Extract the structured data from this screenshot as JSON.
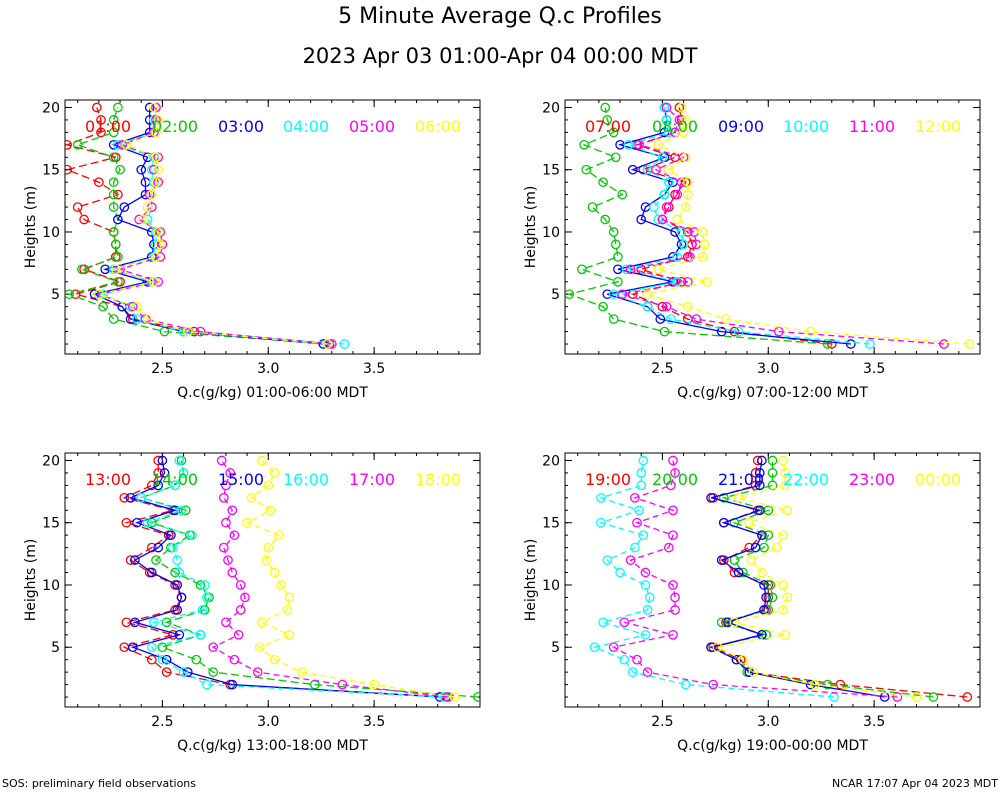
{
  "title": "5 Minute Average Q.c Profiles",
  "subtitle": "2023 Apr 03 01:00-Apr 04 00:00 MDT",
  "footer_left": "SOS: preliminary field observations",
  "footer_right": "NCAR 17:07 Apr 04 2023 MDT",
  "colors": {
    "red": "#ff0000",
    "green": "#00cc00",
    "blue": "#0000ff",
    "cyan": "#00ffff",
    "magenta": "#ff00ff",
    "yellow": "#ffff00"
  },
  "chart_data": [
    {
      "type": "line",
      "xlabel": "Q.c(g/kg) 01:00-06:00 MDT",
      "ylabel": "Heights (m)",
      "xlim": [
        2.04,
        4.0
      ],
      "ylim": [
        0.2,
        20.6
      ],
      "xticks": [
        "2.5",
        "3.0",
        "3.5"
      ],
      "yticks": [
        "5",
        "10",
        "15",
        "20"
      ],
      "heights": [
        1,
        2,
        3,
        4,
        5,
        6,
        7,
        8,
        9,
        10,
        11,
        12,
        13,
        14,
        15,
        16,
        17,
        18,
        19,
        20
      ],
      "series": [
        {
          "name": "01:00",
          "color": "#ff0000",
          "values": [
            3.29,
            2.65,
            2.36,
            2.31,
            2.09,
            2.3,
            2.13,
            2.28,
            2.28,
            2.27,
            2.13,
            2.1,
            2.29,
            2.2,
            2.05,
            2.28,
            2.05,
            2.21,
            2.21,
            2.19
          ]
        },
        {
          "name": "02:00",
          "color": "#00cc00",
          "values": [
            3.28,
            2.51,
            2.27,
            2.22,
            2.06,
            2.29,
            2.12,
            2.29,
            2.28,
            2.27,
            2.29,
            2.27,
            2.27,
            2.27,
            2.3,
            2.27,
            2.1,
            2.27,
            2.27,
            2.29
          ]
        },
        {
          "name": "03:00",
          "color": "#0000ff",
          "values": [
            3.26,
            2.6,
            2.35,
            2.31,
            2.18,
            2.43,
            2.23,
            2.45,
            2.46,
            2.45,
            2.29,
            2.32,
            2.42,
            2.42,
            2.4,
            2.43,
            2.27,
            2.44,
            2.44,
            2.44
          ]
        },
        {
          "name": "04:00",
          "color": "#00ffff",
          "values": [
            3.36,
            2.6,
            2.38,
            2.35,
            2.22,
            2.45,
            2.27,
            2.46,
            2.47,
            2.47,
            2.43,
            2.45,
            2.45,
            2.46,
            2.45,
            2.46,
            2.29,
            2.47,
            2.46,
            2.47
          ]
        },
        {
          "name": "05:00",
          "color": "#ff00ff",
          "values": [
            3.3,
            2.68,
            2.42,
            2.36,
            2.2,
            2.48,
            2.3,
            2.49,
            2.5,
            2.49,
            2.39,
            2.45,
            2.44,
            2.48,
            2.46,
            2.48,
            2.31,
            2.46,
            2.47,
            2.47
          ]
        },
        {
          "name": "06:00",
          "color": "#ffff00",
          "values": [
            3.28,
            2.62,
            2.43,
            2.38,
            2.2,
            2.46,
            2.28,
            2.47,
            2.49,
            2.48,
            2.41,
            2.43,
            2.45,
            2.47,
            2.48,
            2.47,
            2.33,
            2.47,
            2.48,
            2.46
          ]
        }
      ]
    },
    {
      "type": "line",
      "xlabel": "Q.c(g/kg) 07:00-12:00 MDT",
      "ylabel": "Heights (m)",
      "xlim": [
        2.04,
        4.0
      ],
      "ylim": [
        0.2,
        20.6
      ],
      "xticks": [
        "2.5",
        "3.0",
        "3.5"
      ],
      "yticks": [
        "5",
        "10",
        "15",
        "20"
      ],
      "heights": [
        1,
        2,
        3,
        4,
        5,
        6,
        7,
        8,
        9,
        10,
        11,
        12,
        13,
        14,
        15,
        16,
        17,
        18,
        19,
        20
      ],
      "series": [
        {
          "name": "07:00",
          "color": "#ff0000",
          "values": [
            3.3,
            2.84,
            2.62,
            2.5,
            2.36,
            2.59,
            2.4,
            2.62,
            2.64,
            2.62,
            2.5,
            2.53,
            2.56,
            2.61,
            2.41,
            2.56,
            2.38,
            2.56,
            2.59,
            2.58
          ]
        },
        {
          "name": "08:00",
          "color": "#00cc00",
          "values": [
            3.28,
            2.51,
            2.27,
            2.22,
            2.06,
            2.29,
            2.12,
            2.29,
            2.28,
            2.27,
            2.23,
            2.17,
            2.31,
            2.22,
            2.14,
            2.28,
            2.13,
            2.27,
            2.24,
            2.23
          ]
        },
        {
          "name": "09:00",
          "color": "#0000ff",
          "values": [
            3.39,
            2.78,
            2.49,
            2.43,
            2.24,
            2.55,
            2.29,
            2.55,
            2.59,
            2.56,
            2.4,
            2.42,
            2.51,
            2.55,
            2.36,
            2.51,
            2.3,
            2.51,
            2.52,
            2.51
          ]
        },
        {
          "name": "10:00",
          "color": "#00ffff",
          "values": [
            3.48,
            2.86,
            2.54,
            2.43,
            2.27,
            2.57,
            2.33,
            2.57,
            2.6,
            2.59,
            2.48,
            2.46,
            2.51,
            2.53,
            2.43,
            2.5,
            2.34,
            2.53,
            2.52,
            2.51
          ]
        },
        {
          "name": "11:00",
          "color": "#ff00ff",
          "values": [
            3.83,
            3.05,
            2.66,
            2.52,
            2.31,
            2.62,
            2.35,
            2.63,
            2.66,
            2.65,
            2.5,
            2.52,
            2.57,
            2.59,
            2.47,
            2.6,
            2.39,
            2.56,
            2.58,
            2.52
          ]
        },
        {
          "name": "12:00",
          "color": "#ffff00",
          "values": [
            3.95,
            3.2,
            2.8,
            2.62,
            2.43,
            2.71,
            2.48,
            2.69,
            2.7,
            2.69,
            2.57,
            2.61,
            2.62,
            2.62,
            2.53,
            2.61,
            2.48,
            2.6,
            2.61,
            2.59
          ]
        }
      ]
    },
    {
      "type": "line",
      "xlabel": "Q.c(g/kg) 13:00-18:00 MDT",
      "ylabel": "Heights (m)",
      "xlim": [
        2.04,
        4.0
      ],
      "ylim": [
        0.2,
        20.6
      ],
      "xticks": [
        "2.5",
        "3.0",
        "3.5"
      ],
      "yticks": [
        "5",
        "10",
        "15",
        "20"
      ],
      "heights": [
        1,
        2,
        3,
        4,
        5,
        6,
        7,
        8,
        9,
        10,
        11,
        12,
        13,
        14,
        15,
        16,
        17,
        18,
        19,
        20
      ],
      "series": [
        {
          "name": "13:00",
          "color": "#ff0000",
          "values": [
            3.84,
            2.82,
            2.52,
            2.45,
            2.32,
            2.55,
            2.33,
            2.56,
            2.59,
            2.56,
            2.44,
            2.35,
            2.45,
            2.53,
            2.33,
            2.55,
            2.32,
            2.45,
            2.48,
            2.48
          ]
        },
        {
          "name": "14:00",
          "color": "#00cc00",
          "values": [
            3.99,
            3.22,
            2.74,
            2.66,
            2.5,
            2.68,
            2.52,
            2.7,
            2.72,
            2.68,
            2.56,
            2.47,
            2.54,
            2.63,
            2.45,
            2.61,
            2.4,
            2.56,
            2.6,
            2.59
          ]
        },
        {
          "name": "15:00",
          "color": "#0000ff",
          "values": [
            3.81,
            2.83,
            2.62,
            2.52,
            2.36,
            2.58,
            2.37,
            2.57,
            2.59,
            2.57,
            2.45,
            2.37,
            2.48,
            2.54,
            2.38,
            2.56,
            2.35,
            2.48,
            2.51,
            2.5
          ]
        },
        {
          "name": "16:00",
          "color": "#00ffff",
          "values": [
            3.83,
            2.71,
            2.6,
            2.5,
            2.45,
            2.68,
            2.46,
            2.69,
            2.71,
            2.7,
            2.58,
            2.57,
            2.55,
            2.64,
            2.43,
            2.59,
            2.4,
            2.56,
            2.6,
            2.58
          ]
        },
        {
          "name": "17:00",
          "color": "#ff00ff",
          "values": [
            3.85,
            3.35,
            2.95,
            2.84,
            2.74,
            2.86,
            2.8,
            2.87,
            2.89,
            2.87,
            2.83,
            2.81,
            2.79,
            2.84,
            2.8,
            2.83,
            2.79,
            2.8,
            2.82,
            2.78
          ]
        },
        {
          "name": "18:00",
          "color": "#ffff00",
          "values": [
            3.88,
            3.5,
            3.16,
            3.03,
            2.96,
            3.1,
            2.97,
            3.09,
            3.1,
            3.06,
            3.03,
            2.99,
            3.0,
            3.05,
            2.9,
            3.01,
            2.92,
            3.0,
            3.03,
            2.97
          ]
        }
      ]
    },
    {
      "type": "line",
      "xlabel": "Q.c(g/kg) 19:00-00:00 MDT",
      "ylabel": "Heights (m)",
      "xlim": [
        2.04,
        4.0
      ],
      "ylim": [
        0.2,
        20.6
      ],
      "xticks": [
        "2.5",
        "3.0",
        "3.5"
      ],
      "yticks": [
        "5",
        "10",
        "15",
        "20"
      ],
      "heights": [
        1,
        2,
        3,
        4,
        5,
        6,
        7,
        8,
        9,
        10,
        11,
        12,
        13,
        14,
        15,
        16,
        17,
        18,
        19,
        20
      ],
      "series": [
        {
          "name": "19:00",
          "color": "#ff0000",
          "values": [
            3.94,
            3.34,
            2.91,
            2.87,
            2.74,
            2.97,
            2.8,
            2.99,
            3.0,
            3.0,
            2.84,
            2.79,
            2.91,
            2.97,
            2.79,
            2.95,
            2.74,
            2.94,
            2.94,
            2.95
          ]
        },
        {
          "name": "20:00",
          "color": "#00cc00",
          "values": [
            3.78,
            3.28,
            2.9,
            2.85,
            2.73,
            2.99,
            2.78,
            3.0,
            3.02,
            3.01,
            2.88,
            2.84,
            2.98,
            3.0,
            2.84,
            3.0,
            2.79,
            3.02,
            3.02,
            3.02
          ]
        },
        {
          "name": "21:00",
          "color": "#0000ff",
          "values": [
            3.55,
            3.2,
            2.91,
            2.85,
            2.73,
            2.97,
            2.81,
            2.98,
            2.99,
            2.98,
            2.86,
            2.78,
            2.94,
            2.97,
            2.79,
            2.96,
            2.73,
            2.96,
            2.96,
            2.97
          ]
        },
        {
          "name": "22:00",
          "color": "#00ffff",
          "values": [
            3.31,
            2.61,
            2.36,
            2.32,
            2.18,
            2.42,
            2.22,
            2.43,
            2.44,
            2.42,
            2.3,
            2.24,
            2.37,
            2.41,
            2.21,
            2.39,
            2.21,
            2.4,
            2.4,
            2.41
          ]
        },
        {
          "name": "23:00",
          "color": "#ff00ff",
          "values": [
            3.61,
            2.74,
            2.43,
            2.38,
            2.27,
            2.55,
            2.32,
            2.56,
            2.56,
            2.55,
            2.42,
            2.35,
            2.53,
            2.55,
            2.38,
            2.55,
            2.37,
            2.54,
            2.56,
            2.55
          ]
        },
        {
          "name": "00:00",
          "color": "#ffff00",
          "values": [
            3.7,
            3.22,
            2.93,
            2.88,
            2.76,
            3.08,
            2.84,
            3.07,
            3.09,
            3.07,
            2.97,
            2.92,
            3.04,
            3.07,
            2.91,
            3.09,
            2.86,
            3.08,
            3.08,
            3.07
          ]
        }
      ]
    }
  ]
}
